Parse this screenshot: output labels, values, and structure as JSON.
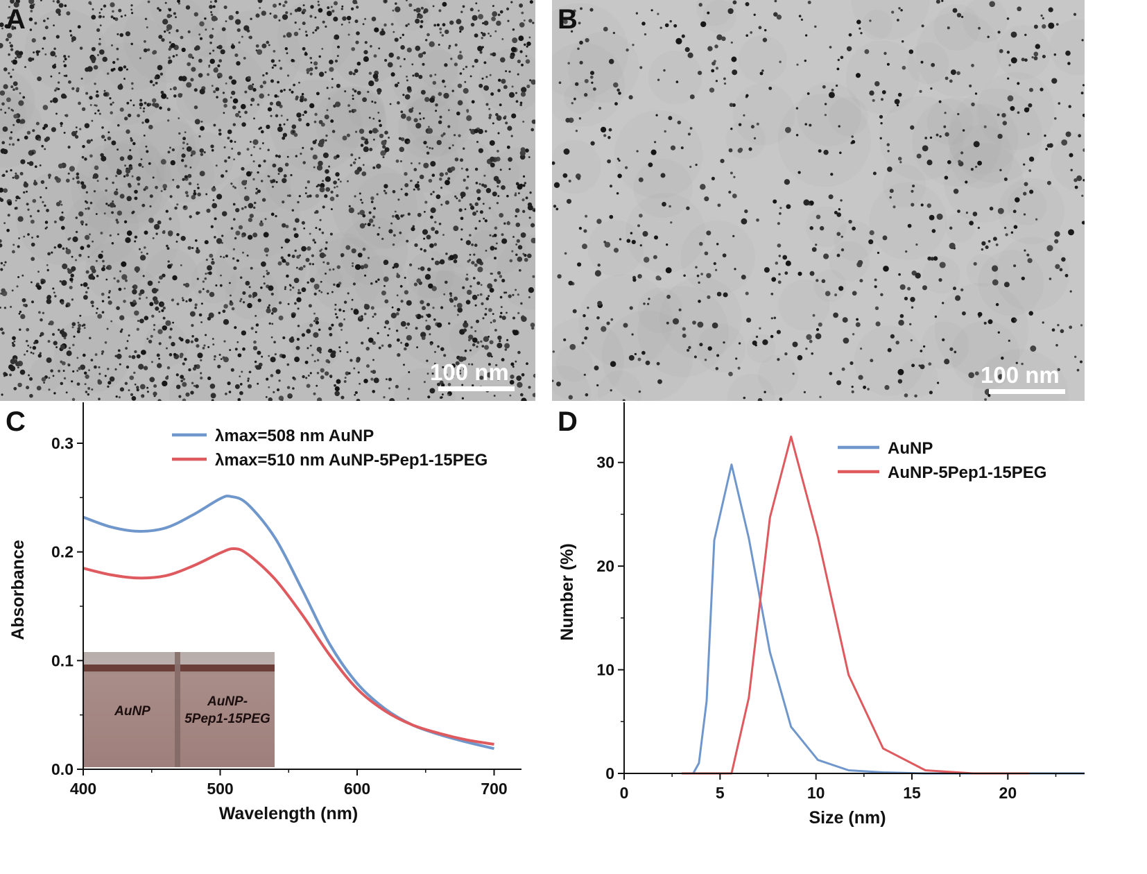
{
  "panels": {
    "A": {
      "letter": "A",
      "scale_bar": "100 nm"
    },
    "B": {
      "letter": "B",
      "scale_bar": "100 nm"
    },
    "C": {
      "letter": "C"
    },
    "D": {
      "letter": "D"
    }
  },
  "chart_data": [
    {
      "panel": "C",
      "type": "line",
      "xlabel": "Wavelength (nm)",
      "ylabel": "Absorbance",
      "xlim": [
        400,
        720
      ],
      "ylim": [
        0.0,
        0.33
      ],
      "xticks": [
        400,
        500,
        600,
        700
      ],
      "yticks": [
        0.0,
        0.1,
        0.2,
        0.3
      ],
      "xtick_labels": [
        "400",
        "500",
        "600",
        "700"
      ],
      "ytick_labels": [
        "0.0",
        "0.1",
        "0.2",
        "0.3"
      ],
      "legend_position": "top-right",
      "colors": {
        "blue": "#6f97cc",
        "red": "#de5a5e"
      },
      "series": [
        {
          "name": "λmax=508 nm AuNP",
          "color": "#6f97cc",
          "x": [
            400,
            420,
            440,
            460,
            480,
            500,
            508,
            520,
            540,
            560,
            580,
            600,
            620,
            640,
            660,
            680,
            700
          ],
          "y": [
            0.232,
            0.223,
            0.219,
            0.222,
            0.234,
            0.249,
            0.251,
            0.244,
            0.213,
            0.165,
            0.115,
            0.079,
            0.056,
            0.041,
            0.032,
            0.025,
            0.019
          ]
        },
        {
          "name": "λmax=510 nm AuNP-5Pep1-15PEG",
          "color": "#de5a5e",
          "x": [
            400,
            420,
            440,
            460,
            480,
            500,
            510,
            520,
            540,
            560,
            580,
            600,
            620,
            640,
            660,
            680,
            700
          ],
          "y": [
            0.185,
            0.179,
            0.176,
            0.178,
            0.187,
            0.199,
            0.203,
            0.198,
            0.175,
            0.142,
            0.105,
            0.074,
            0.054,
            0.041,
            0.033,
            0.027,
            0.023
          ]
        }
      ],
      "inset": {
        "labels": [
          "AuNP",
          "AuNP-",
          "5Pep1-15PEG"
        ]
      }
    },
    {
      "panel": "D",
      "type": "line",
      "xlabel": "Size (nm)",
      "ylabel": "Number (%)",
      "xlim": [
        0,
        24
      ],
      "ylim": [
        0,
        35
      ],
      "xticks": [
        0,
        5,
        10,
        15,
        20
      ],
      "yticks": [
        0,
        10,
        20,
        30
      ],
      "xtick_labels": [
        "0",
        "5",
        "10",
        "15",
        "20"
      ],
      "ytick_labels": [
        "0",
        "10",
        "20",
        "30"
      ],
      "legend_position": "top-right",
      "colors": {
        "blue": "#6f97cc",
        "red": "#de5a5e"
      },
      "series": [
        {
          "name": "AuNP",
          "color": "#6f97cc",
          "x": [
            3.6,
            3.9,
            4.3,
            4.7,
            5.6,
            6.5,
            7.6,
            8.7,
            10.1,
            11.7,
            13.5,
            15.7,
            18.2,
            21.1,
            24.0
          ],
          "y": [
            0,
            1.0,
            7.0,
            22.5,
            29.8,
            22.7,
            11.7,
            4.5,
            1.3,
            0.3,
            0.1,
            0.0,
            0.0,
            0.0,
            0.0
          ]
        },
        {
          "name": "AuNP-5Pep1-15PEG",
          "color": "#de5a5e",
          "x": [
            3.0,
            5.6,
            6.5,
            7.6,
            8.7,
            10.1,
            11.7,
            13.5,
            15.7,
            18.2,
            21.1
          ],
          "y": [
            0,
            0,
            7.3,
            24.7,
            32.5,
            22.8,
            9.5,
            2.4,
            0.3,
            0.0,
            0.0
          ]
        }
      ]
    }
  ]
}
